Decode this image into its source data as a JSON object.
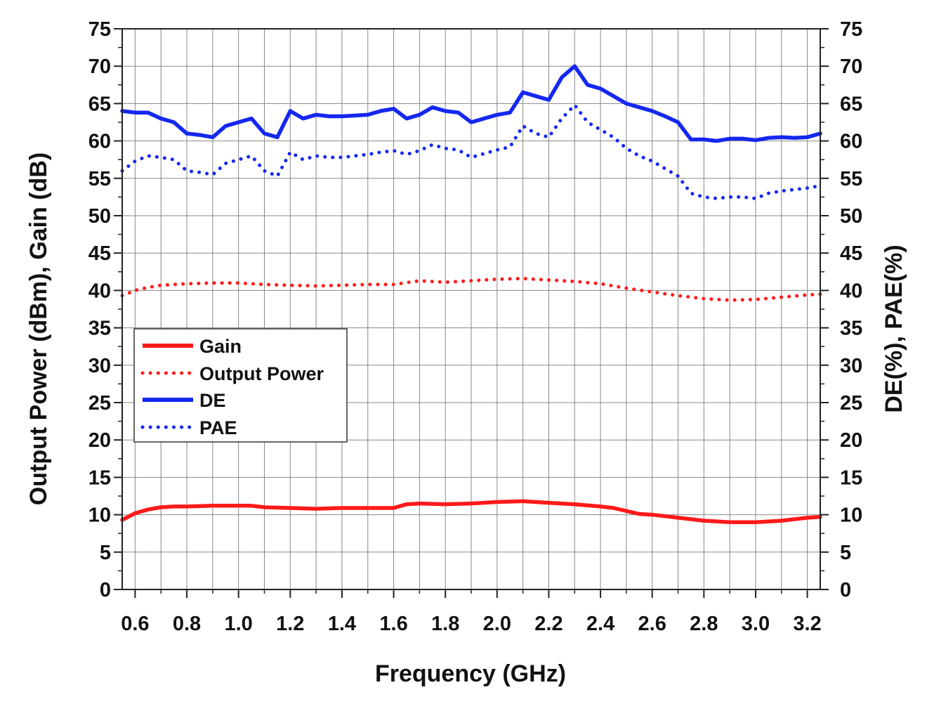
{
  "chart_data": {
    "type": "line",
    "xlabel": "Frequency (GHz)",
    "ylabel_left": "Output Power (dBm), Gain (dB)",
    "ylabel_right": "DE(%), PAE(%)",
    "xlim": [
      0.55,
      3.25
    ],
    "ylim": [
      0,
      75
    ],
    "xticks": [
      0.6,
      0.8,
      1.0,
      1.2,
      1.4,
      1.6,
      1.8,
      2.0,
      2.2,
      2.4,
      2.6,
      2.8,
      3.0,
      3.2
    ],
    "xtick_labels": [
      "0.6",
      "0.8",
      "1.0",
      "1.2",
      "1.4",
      "1.6",
      "1.8",
      "2.0",
      "2.2",
      "2.4",
      "2.6",
      "2.8",
      "3.0",
      "3.2"
    ],
    "yticks": [
      0,
      5,
      10,
      15,
      20,
      25,
      30,
      35,
      40,
      45,
      50,
      55,
      60,
      65,
      70,
      75
    ],
    "ytick_labels": [
      "0",
      "5",
      "10",
      "15",
      "20",
      "25",
      "30",
      "35",
      "40",
      "45",
      "50",
      "55",
      "60",
      "65",
      "70",
      "75"
    ],
    "grid": true,
    "legend_position": "middle-left",
    "series": [
      {
        "name": "Gain",
        "axis": "left",
        "color": "#ff1a1a",
        "style": "solid",
        "x": [
          0.55,
          0.6,
          0.65,
          0.7,
          0.75,
          0.8,
          0.9,
          1.0,
          1.05,
          1.1,
          1.2,
          1.3,
          1.4,
          1.5,
          1.6,
          1.65,
          1.7,
          1.8,
          1.9,
          2.0,
          2.1,
          2.2,
          2.3,
          2.4,
          2.45,
          2.5,
          2.55,
          2.6,
          2.65,
          2.7,
          2.8,
          2.9,
          3.0,
          3.1,
          3.2,
          3.25
        ],
        "y": [
          9.3,
          10.2,
          10.7,
          11.0,
          11.1,
          11.1,
          11.2,
          11.2,
          11.2,
          11.0,
          10.9,
          10.8,
          10.9,
          10.9,
          10.9,
          11.4,
          11.5,
          11.4,
          11.5,
          11.7,
          11.8,
          11.6,
          11.4,
          11.1,
          10.9,
          10.5,
          10.1,
          10.0,
          9.8,
          9.6,
          9.2,
          9.0,
          9.0,
          9.2,
          9.6,
          9.7
        ]
      },
      {
        "name": "Output Power",
        "axis": "left",
        "color": "#ff1a1a",
        "style": "dotted",
        "x": [
          0.55,
          0.6,
          0.65,
          0.7,
          0.75,
          0.8,
          0.9,
          1.0,
          1.1,
          1.2,
          1.3,
          1.4,
          1.5,
          1.6,
          1.7,
          1.8,
          1.9,
          2.0,
          2.1,
          2.2,
          2.3,
          2.4,
          2.5,
          2.6,
          2.7,
          2.8,
          2.9,
          3.0,
          3.1,
          3.2,
          3.25
        ],
        "y": [
          39.3,
          40.0,
          40.4,
          40.7,
          40.8,
          40.9,
          41.0,
          41.0,
          40.8,
          40.7,
          40.6,
          40.7,
          40.8,
          40.8,
          41.3,
          41.1,
          41.3,
          41.5,
          41.6,
          41.4,
          41.2,
          40.9,
          40.3,
          39.8,
          39.3,
          38.9,
          38.7,
          38.8,
          39.1,
          39.4,
          39.5
        ]
      },
      {
        "name": "DE",
        "axis": "right",
        "color": "#1428f0",
        "style": "solid",
        "x": [
          0.55,
          0.6,
          0.65,
          0.7,
          0.75,
          0.8,
          0.85,
          0.9,
          0.95,
          1.0,
          1.05,
          1.1,
          1.15,
          1.2,
          1.25,
          1.3,
          1.35,
          1.4,
          1.5,
          1.55,
          1.6,
          1.65,
          1.7,
          1.75,
          1.8,
          1.85,
          1.9,
          1.95,
          2.0,
          2.05,
          2.1,
          2.15,
          2.2,
          2.25,
          2.3,
          2.35,
          2.4,
          2.45,
          2.5,
          2.55,
          2.6,
          2.65,
          2.7,
          2.75,
          2.8,
          2.85,
          2.9,
          2.95,
          3.0,
          3.05,
          3.1,
          3.15,
          3.2,
          3.25
        ],
        "y": [
          64.0,
          63.8,
          63.8,
          63.0,
          62.5,
          61.0,
          60.8,
          60.5,
          62.0,
          62.5,
          63.0,
          61.0,
          60.5,
          64.0,
          63.0,
          63.5,
          63.3,
          63.3,
          63.5,
          64.0,
          64.3,
          63.0,
          63.5,
          64.5,
          64.0,
          63.8,
          62.5,
          63.0,
          63.5,
          63.8,
          66.5,
          66.0,
          65.5,
          68.5,
          70.0,
          67.5,
          67.0,
          66.0,
          65.0,
          64.5,
          64.0,
          63.3,
          62.5,
          60.2,
          60.2,
          60.0,
          60.3,
          60.3,
          60.1,
          60.4,
          60.5,
          60.4,
          60.5,
          61.0
        ]
      },
      {
        "name": "PAE",
        "axis": "right",
        "color": "#1428f0",
        "style": "dotted",
        "x": [
          0.55,
          0.6,
          0.65,
          0.7,
          0.75,
          0.8,
          0.85,
          0.9,
          0.95,
          1.0,
          1.05,
          1.1,
          1.15,
          1.2,
          1.25,
          1.3,
          1.35,
          1.4,
          1.5,
          1.55,
          1.6,
          1.65,
          1.7,
          1.75,
          1.8,
          1.85,
          1.9,
          1.95,
          2.0,
          2.05,
          2.1,
          2.15,
          2.2,
          2.25,
          2.3,
          2.35,
          2.4,
          2.45,
          2.5,
          2.55,
          2.6,
          2.65,
          2.7,
          2.75,
          2.8,
          2.85,
          2.9,
          2.95,
          3.0,
          3.05,
          3.1,
          3.15,
          3.2,
          3.25
        ],
        "y": [
          56.0,
          57.3,
          58.0,
          57.8,
          57.5,
          56.0,
          55.8,
          55.5,
          57.0,
          57.5,
          58.0,
          56.0,
          55.3,
          58.5,
          57.5,
          58.0,
          57.8,
          57.8,
          58.2,
          58.5,
          58.7,
          58.2,
          58.7,
          59.5,
          59.0,
          58.8,
          57.8,
          58.3,
          58.8,
          59.2,
          62.0,
          61.0,
          60.5,
          63.0,
          64.8,
          62.5,
          61.5,
          60.5,
          59.0,
          58.0,
          57.3,
          56.3,
          55.3,
          53.0,
          52.5,
          52.3,
          52.5,
          52.5,
          52.3,
          53.0,
          53.3,
          53.5,
          53.7,
          54.0
        ]
      }
    ]
  },
  "legend": {
    "gain_label": "Gain",
    "output_power_label": "Output Power",
    "de_label": "DE",
    "pae_label": "PAE"
  }
}
